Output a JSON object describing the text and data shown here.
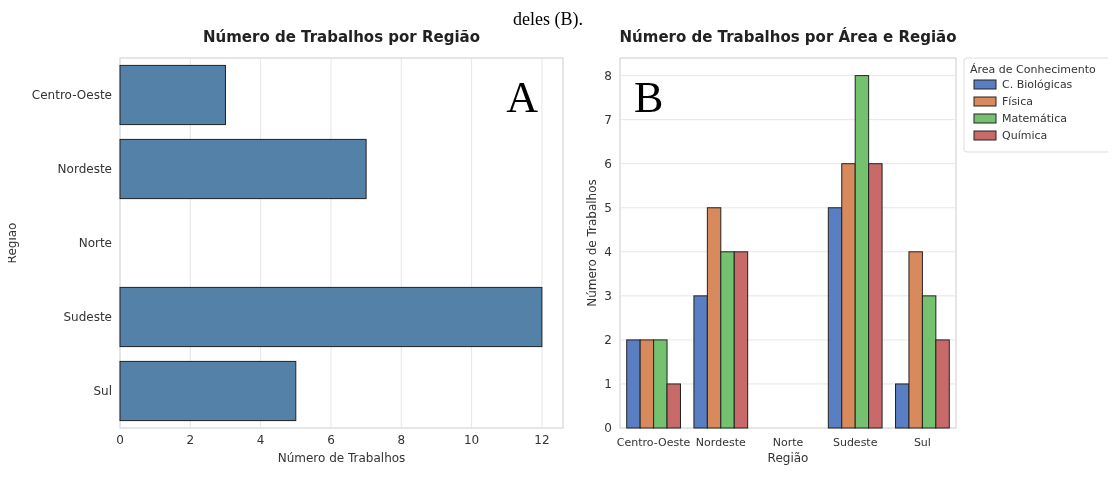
{
  "chart_data": [
    {
      "type": "bar",
      "orientation": "horizontal",
      "title": "Número de Trabalhos por Região",
      "xlabel": "Número de Trabalhos",
      "ylabel": "Região",
      "categories": [
        "Centro-Oeste",
        "Nordeste",
        "Norte",
        "Sudeste",
        "Sul"
      ],
      "values": [
        3,
        7,
        0,
        12,
        5
      ],
      "color": "#5381a8",
      "xlim": [
        0,
        12.6
      ],
      "xticks": [
        0,
        2,
        4,
        6,
        8,
        10,
        12
      ],
      "grid": "x",
      "annotations": [
        "deles (B).",
        "A"
      ]
    },
    {
      "type": "bar",
      "title": "Número de Trabalhos por Área e Região",
      "xlabel": "Região",
      "ylabel": "Número de Trabalhos",
      "legend_title": "Área de Conhecimento",
      "categories": [
        "Centro-Oeste",
        "Nordeste",
        "Norte",
        "Sudeste",
        "Sul"
      ],
      "series": [
        {
          "name": "C. Biológicas",
          "color": "#5a7ec2",
          "values": [
            2,
            3,
            0,
            5,
            1
          ]
        },
        {
          "name": "Física",
          "color": "#d98a5c",
          "values": [
            2,
            5,
            0,
            6,
            4
          ]
        },
        {
          "name": "Matemática",
          "color": "#74c26f",
          "values": [
            2,
            4,
            0,
            8,
            3
          ]
        },
        {
          "name": "Química",
          "color": "#c86a6a",
          "values": [
            1,
            4,
            0,
            6,
            2
          ]
        }
      ],
      "ylim": [
        0,
        8.4
      ],
      "yticks": [
        0,
        1,
        2,
        3,
        4,
        5,
        6,
        7,
        8
      ],
      "grid": "y",
      "legend": "right",
      "annotations": [
        "B"
      ]
    }
  ]
}
